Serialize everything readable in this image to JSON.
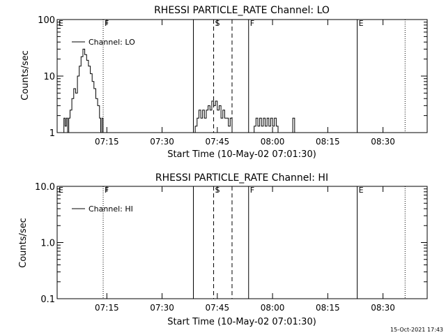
{
  "footer": {
    "timestamp": "15-Oct-2021 17:43"
  },
  "chart_data": [
    {
      "type": "line",
      "title": "RHESSI PARTICLE_RATE Channel: LO",
      "xlabel": "Start Time (10-May-02 07:01:30)",
      "ylabel": "Counts/sec",
      "yscale": "log",
      "ylim": [
        1,
        100
      ],
      "ytick_labels": [
        "1",
        "10",
        "100"
      ],
      "xlim": [
        "07:01:30",
        "08:42:00"
      ],
      "xtick_labels": [
        "07:15",
        "07:30",
        "07:45",
        "08:00",
        "08:15",
        "08:30"
      ],
      "legend": {
        "position": "top-left",
        "entries": [
          "Channel: LO"
        ]
      },
      "grid": false,
      "markers": [
        {
          "label": "E",
          "time": "07:01:30",
          "style": "none"
        },
        {
          "label": "F",
          "time": "07:14:00",
          "style": "dotted"
        },
        {
          "label": "",
          "time": "07:38:30",
          "style": "solid"
        },
        {
          "label": "S",
          "time": "07:44:00",
          "style": "dashed"
        },
        {
          "label": "",
          "time": "07:49:00",
          "style": "dashed"
        },
        {
          "label": "F",
          "time": "07:53:30",
          "style": "solid"
        },
        {
          "label": "E",
          "time": "08:23:00",
          "style": "solid"
        },
        {
          "label": "",
          "time": "08:36:00",
          "style": "dotted"
        }
      ],
      "series": [
        {
          "name": "Channel: LO",
          "segments": [
            [
              [
                "07:03:00",
                1
              ],
              [
                "07:03:20",
                1.8
              ],
              [
                "07:03:40",
                1.3
              ],
              [
                "07:04:00",
                1.8
              ],
              [
                "07:04:20",
                1
              ],
              [
                "07:04:40",
                1.8
              ],
              [
                "07:05:00",
                2.5
              ],
              [
                "07:05:30",
                4
              ],
              [
                "07:06:00",
                6
              ],
              [
                "07:06:30",
                5
              ],
              [
                "07:07:00",
                10
              ],
              [
                "07:07:30",
                15
              ],
              [
                "07:08:00",
                22
              ],
              [
                "07:08:30",
                30
              ],
              [
                "07:09:00",
                24
              ],
              [
                "07:09:30",
                19
              ],
              [
                "07:10:00",
                15
              ],
              [
                "07:10:30",
                11
              ],
              [
                "07:11:00",
                8
              ],
              [
                "07:11:30",
                6
              ],
              [
                "07:12:00",
                4
              ],
              [
                "07:12:30",
                3
              ],
              [
                "07:13:00",
                1.8
              ],
              [
                "07:13:20",
                1
              ],
              [
                "07:13:40",
                1.8
              ],
              [
                "07:14:00",
                1
              ]
            ],
            [
              [
                "07:38:30",
                1
              ],
              [
                "07:39:00",
                1.3
              ],
              [
                "07:39:30",
                1.8
              ],
              [
                "07:40:00",
                2.5
              ],
              [
                "07:40:30",
                1.8
              ],
              [
                "07:41:00",
                2.5
              ],
              [
                "07:41:30",
                1.8
              ],
              [
                "07:42:00",
                2.5
              ],
              [
                "07:42:30",
                3
              ],
              [
                "07:43:00",
                2.5
              ],
              [
                "07:43:30",
                3.6
              ],
              [
                "07:44:00",
                3
              ],
              [
                "07:44:30",
                3.6
              ],
              [
                "07:45:00",
                2.5
              ],
              [
                "07:45:30",
                3
              ],
              [
                "07:46:00",
                1.8
              ],
              [
                "07:46:30",
                2.5
              ],
              [
                "07:47:00",
                1.8
              ],
              [
                "07:47:30",
                1.8
              ],
              [
                "07:48:00",
                1.3
              ],
              [
                "07:48:30",
                1.8
              ],
              [
                "07:49:00",
                1
              ]
            ],
            [
              [
                "07:54:30",
                1
              ],
              [
                "07:55:00",
                1.3
              ],
              [
                "07:55:30",
                1.8
              ],
              [
                "07:56:00",
                1.3
              ],
              [
                "07:56:30",
                1.8
              ],
              [
                "07:57:00",
                1.3
              ],
              [
                "07:57:30",
                1.8
              ],
              [
                "07:58:00",
                1.3
              ],
              [
                "07:58:30",
                1.8
              ],
              [
                "07:59:00",
                1.3
              ],
              [
                "07:59:30",
                1.8
              ],
              [
                "08:00:00",
                1.3
              ],
              [
                "08:00:30",
                1.8
              ],
              [
                "08:01:00",
                1.3
              ],
              [
                "08:01:30",
                1
              ]
            ],
            [
              [
                "08:05:00",
                1
              ],
              [
                "08:05:30",
                1.8
              ],
              [
                "08:06:00",
                1
              ]
            ]
          ]
        }
      ]
    },
    {
      "type": "line",
      "title": "RHESSI PARTICLE_RATE Channel: HI",
      "xlabel": "Start Time (10-May-02 07:01:30)",
      "ylabel": "Counts/sec",
      "yscale": "log",
      "ylim": [
        0.1,
        10
      ],
      "ytick_labels": [
        "0.1",
        "1.0",
        "10.0"
      ],
      "xlim": [
        "07:01:30",
        "08:42:00"
      ],
      "xtick_labels": [
        "07:15",
        "07:30",
        "07:45",
        "08:00",
        "08:15",
        "08:30"
      ],
      "legend": {
        "position": "top-left",
        "entries": [
          "Channel: HI"
        ]
      },
      "grid": false,
      "markers": [
        {
          "label": "E",
          "time": "07:01:30",
          "style": "none"
        },
        {
          "label": "F",
          "time": "07:14:00",
          "style": "dotted"
        },
        {
          "label": "",
          "time": "07:38:30",
          "style": "solid"
        },
        {
          "label": "S",
          "time": "07:44:00",
          "style": "dashed"
        },
        {
          "label": "",
          "time": "07:49:00",
          "style": "dashed"
        },
        {
          "label": "F",
          "time": "07:53:30",
          "style": "solid"
        },
        {
          "label": "E",
          "time": "08:23:00",
          "style": "solid"
        },
        {
          "label": "",
          "time": "08:36:00",
          "style": "dotted"
        }
      ],
      "series": [
        {
          "name": "Channel: HI",
          "segments": []
        }
      ]
    }
  ]
}
